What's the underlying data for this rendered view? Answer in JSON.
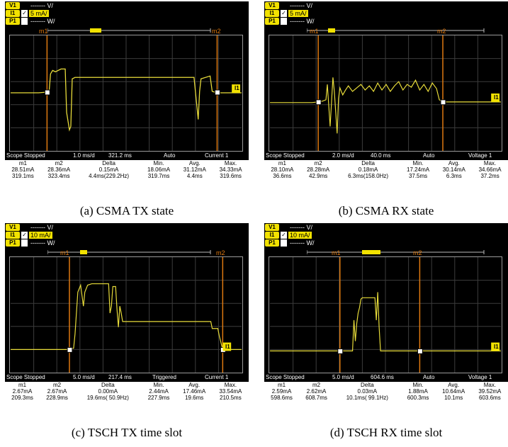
{
  "panels": [
    {
      "legend": [
        "V1",
        "I1",
        "P1"
      ],
      "legend_values": [
        "------- V/",
        "5 mA/",
        "------- W/"
      ],
      "check": "✓",
      "markers": [
        "m1",
        "m2"
      ],
      "status": [
        "Scope Stopped",
        "1.0 ms/d",
        "321.2 ms",
        "Auto",
        "Current 1"
      ],
      "headers": [
        "m1",
        "m2",
        "Delta",
        "Min.",
        "Avg.",
        "Max."
      ],
      "row1": [
        "28.51mA",
        "28.36mA",
        "0.15mA",
        "18.06mA",
        "31.12mA",
        "34.33mA"
      ],
      "row2": [
        "319.1ms",
        "323.4ms",
        "4.4ms(229.2Hz)",
        "319.7ms",
        "4.4ms",
        "319.6ms"
      ],
      "channel_tag": "I1",
      "caption": "(a) CSMA TX state"
    },
    {
      "legend": [
        "V1",
        "I1",
        "P1"
      ],
      "legend_values": [
        "------- V/",
        "5 mA/",
        "------- W/"
      ],
      "check": "✓",
      "markers": [
        "m1",
        "m2"
      ],
      "status": [
        "Scope Stopped",
        "2.0 ms/d",
        "40.0 ms",
        "Auto",
        "Voltage 1"
      ],
      "headers": [
        "m1",
        "m2",
        "Delta",
        "Min.",
        "Avg.",
        "Max."
      ],
      "row1": [
        "28.10mA",
        "28.28mA",
        "0.18mA",
        "17.24mA",
        "30.14mA",
        "34.66mA"
      ],
      "row2": [
        "36.6ms",
        "42.9ms",
        "6.3ms(158.0Hz)",
        "37.5ms",
        "6.3ms",
        "37.2ms"
      ],
      "channel_tag": "I1",
      "caption": "(b) CSMA RX state"
    },
    {
      "legend": [
        "V1",
        "I1",
        "P1"
      ],
      "legend_values": [
        "------- V/",
        "10 mA/",
        "------- W/"
      ],
      "check": "✓",
      "markers": [
        "m1",
        "m2"
      ],
      "status": [
        "Scope Stopped",
        "5.0 ms/d",
        "217.4 ms",
        "Triggered",
        "Current 1"
      ],
      "headers": [
        "m1",
        "m2",
        "Delta",
        "Min.",
        "Avg.",
        "Max."
      ],
      "row1": [
        "2.67mA",
        "2.67mA",
        "0.00mA",
        "2.44mA",
        "17.46mA",
        "33.54mA"
      ],
      "row2": [
        "209.3ms",
        "228.9ms",
        "19.6ms( 50.9Hz)",
        "227.9ms",
        "19.6ms",
        "210.5ms"
      ],
      "channel_tag": "I1",
      "caption": "(c) TSCH TX time slot"
    },
    {
      "legend": [
        "V1",
        "I1",
        "P1"
      ],
      "legend_values": [
        "------- V/",
        "10 mA/",
        "------- W/"
      ],
      "check": "✓",
      "markers": [
        "m1",
        "m2"
      ],
      "status": [
        "Scope Stopped",
        "5.0 ms/d",
        "604.6 ms",
        "Auto",
        "Voltage 1"
      ],
      "headers": [
        "m1",
        "m2",
        "Delta",
        "Min.",
        "Avg.",
        "Max."
      ],
      "row1": [
        "2.59mA",
        "2.62mA",
        "0.03mA",
        "1.88mA",
        "10.64mA",
        "39.52mA"
      ],
      "row2": [
        "598.6ms",
        "608.7ms",
        "10.1ms( 99.1Hz)",
        "600.3ms",
        "10.1ms",
        "603.6ms"
      ],
      "channel_tag": "I1",
      "caption": "(d) TSCH RX time slot"
    }
  ],
  "colors": {
    "trace": "#e8dc3a",
    "marker": "#e07a10",
    "grid": "#4a4a4a",
    "legend_yellow": "#f2e200"
  }
}
